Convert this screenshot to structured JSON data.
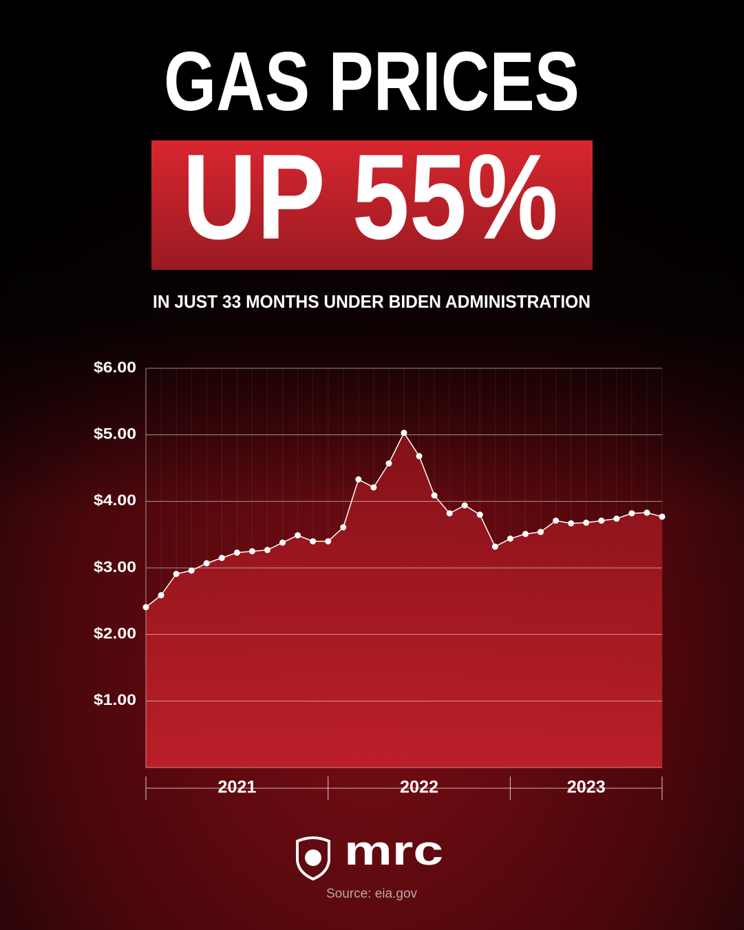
{
  "chart_data": {
    "type": "line",
    "title": "GAS PRICES",
    "headline": "UP 55%",
    "subtitle": "IN JUST 33 MONTHS UNDER BIDEN ADMINISTRATION",
    "brand": "mrc",
    "source": "Source: eia.gov",
    "categories": [
      null,
      null,
      null,
      null,
      null,
      null,
      null,
      null,
      null,
      null,
      null,
      null,
      null,
      null,
      null,
      null,
      null,
      null,
      null,
      null,
      null,
      null,
      null,
      null,
      null,
      null,
      null,
      null,
      null,
      null,
      null,
      null,
      null,
      null,
      null
    ],
    "x_groups": [
      "2021",
      "2022",
      "2023"
    ],
    "series": [
      {
        "color": "#ffffff",
        "values": [
          2.41,
          2.59,
          2.91,
          2.96,
          3.07,
          3.15,
          3.23,
          3.25,
          3.27,
          3.38,
          3.49,
          3.4,
          3.4,
          3.61,
          4.33,
          4.21,
          4.57,
          5.03,
          4.68,
          4.09,
          3.82,
          3.94,
          3.8,
          3.32,
          3.44,
          3.51,
          3.54,
          3.71,
          3.67,
          3.68,
          3.71,
          3.74,
          3.82,
          3.83,
          3.77
        ]
      }
    ],
    "ylim": [
      0,
      6
    ],
    "yticks": [
      {
        "value": 1,
        "label": "$1.00"
      },
      {
        "value": 2,
        "label": "$2.00"
      },
      {
        "value": 3,
        "label": "$3.00"
      },
      {
        "value": 4,
        "label": "$4.00"
      },
      {
        "value": 5,
        "label": "$5.00"
      },
      {
        "value": 6,
        "label": "$6.00"
      }
    ],
    "grid": true,
    "area_color": "#c0202a"
  }
}
